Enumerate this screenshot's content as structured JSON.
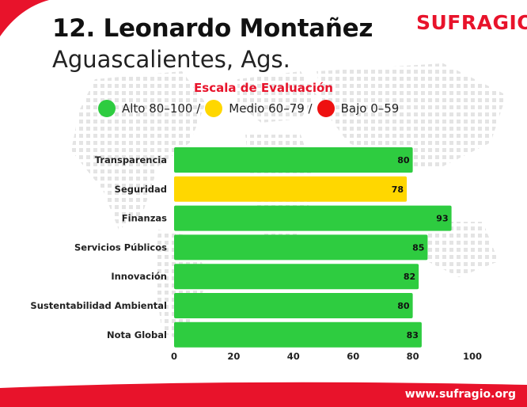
{
  "header": {
    "title": "12. Leonardo Montañez",
    "subtitle": "Aguascalientes, Ags.",
    "logo_text": "SUFRAGIO"
  },
  "legend": {
    "title": "Escala de Evaluación",
    "items": [
      {
        "label": "Alto 80–100 /",
        "color": "#2ecc40"
      },
      {
        "label": "Medio 60–79 /",
        "color": "#ffd700"
      },
      {
        "label": "Bajo 0–59",
        "color": "#ee1111"
      }
    ]
  },
  "footer": {
    "url": "www.sufragio.org"
  },
  "colors": {
    "brand_red": "#e8132b",
    "high": "#2ecc40",
    "medium": "#ffd700",
    "low": "#ee1111"
  },
  "chart_data": {
    "type": "bar",
    "orientation": "horizontal",
    "categories": [
      "Transparencia",
      "Seguridad",
      "Finanzas",
      "Servicios Públicos",
      "Innovación",
      "Sustentabilidad Ambiental",
      "Nota Global"
    ],
    "values": [
      80,
      78,
      93,
      85,
      82,
      80,
      83
    ],
    "bar_colors": [
      "#2ecc40",
      "#ffd700",
      "#2ecc40",
      "#2ecc40",
      "#2ecc40",
      "#2ecc40",
      "#2ecc40"
    ],
    "xlim": [
      0,
      100
    ],
    "xticks": [
      "0",
      "20",
      "40",
      "60",
      "80",
      "100"
    ],
    "grid": false
  }
}
